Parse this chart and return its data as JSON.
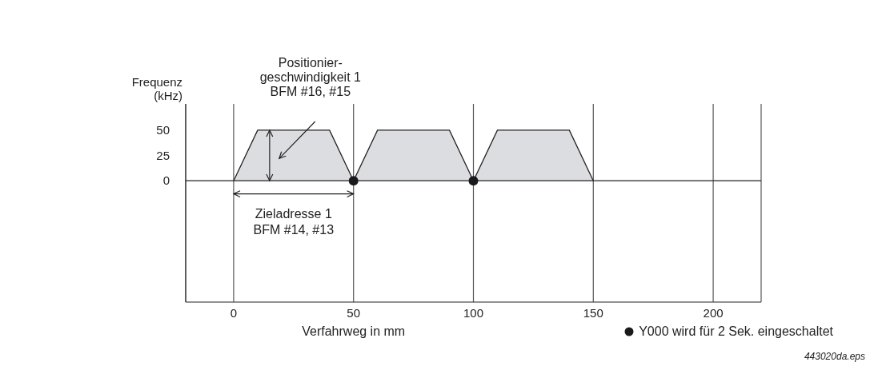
{
  "chart_data": {
    "type": "area",
    "xlabel": "Verfahrweg in mm",
    "ylabel": "Frequenz\n(kHz)",
    "series": [
      {
        "color": "#dcdde0",
        "x": [
          0,
          10,
          40,
          50,
          60,
          90,
          100,
          110,
          140,
          150
        ],
        "values": [
          0,
          50,
          50,
          0,
          50,
          50,
          0,
          50,
          50,
          0
        ]
      },
      {
        "type": "scatter",
        "name": "Y000 wird für 2 Sek. eingeschaltet",
        "color": "#1a1a1a",
        "marker": "circle",
        "x": [
          50,
          100
        ],
        "values": [
          0,
          0
        ]
      }
    ],
    "xlim": [
      -20,
      220
    ],
    "xticks": [
      0,
      50,
      100,
      150,
      200
    ],
    "ylim": [
      -120,
      76
    ],
    "yticks": [
      0,
      25,
      50
    ],
    "grid": "x",
    "legend": "bottom right",
    "ref_lines": [
      {
        "axis": "y",
        "value": 0
      }
    ],
    "annotations": [
      "Positionier-\ngeschwindigkeit 1\nBFM #16, #15",
      "Zieladresse 1\nBFM #14, #13",
      "443020da.eps"
    ]
  }
}
